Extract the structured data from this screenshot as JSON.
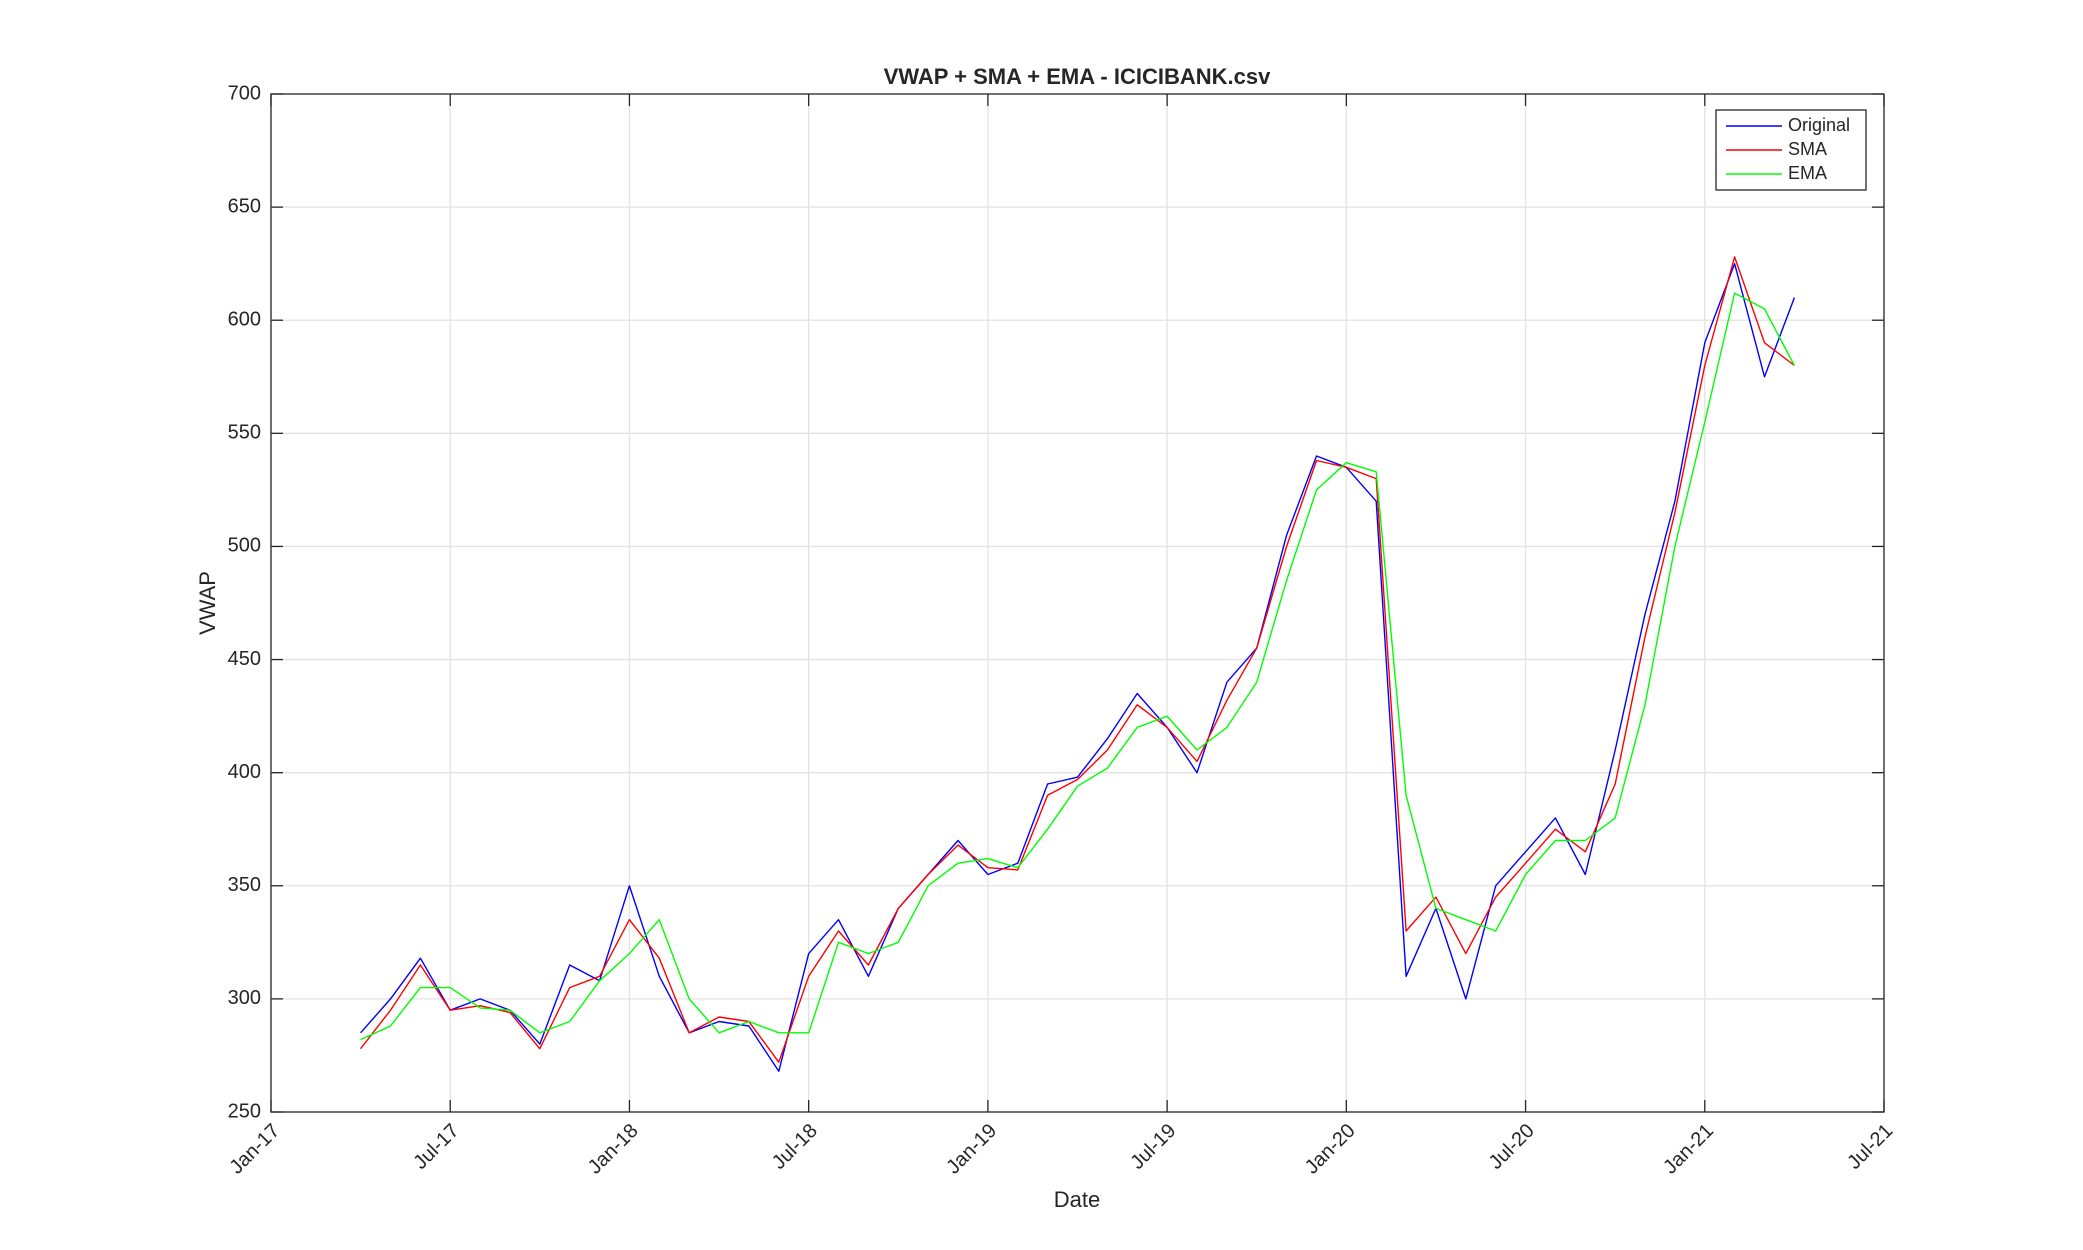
{
  "chart_data": {
    "type": "line",
    "title": "VWAP + SMA + EMA - ICICIBANK.csv",
    "x_label": "Date",
    "y_label": "VWAP",
    "x": [
      "2017-04",
      "2017-05",
      "2017-06",
      "2017-07",
      "2017-08",
      "2017-09",
      "2017-10",
      "2017-11",
      "2017-12",
      "2018-01",
      "2018-02",
      "2018-03",
      "2018-04",
      "2018-05",
      "2018-06",
      "2018-07",
      "2018-08",
      "2018-09",
      "2018-10",
      "2018-11",
      "2018-12",
      "2019-01",
      "2019-02",
      "2019-03",
      "2019-04",
      "2019-05",
      "2019-06",
      "2019-07",
      "2019-08",
      "2019-09",
      "2019-10",
      "2019-11",
      "2019-12",
      "2020-01",
      "2020-02",
      "2020-03",
      "2020-04",
      "2020-05",
      "2020-06",
      "2020-07",
      "2020-08",
      "2020-09",
      "2020-10",
      "2020-11",
      "2020-12",
      "2021-01",
      "2021-02",
      "2021-03",
      "2021-04"
    ],
    "series": [
      {
        "name": "Original",
        "color": "#0000ff",
        "values": [
          285,
          300,
          318,
          295,
          300,
          295,
          280,
          315,
          308,
          350,
          310,
          285,
          290,
          288,
          268,
          320,
          335,
          310,
          340,
          355,
          370,
          355,
          360,
          395,
          398,
          415,
          435,
          420,
          400,
          440,
          455,
          505,
          540,
          535,
          520,
          310,
          340,
          300,
          350,
          365,
          380,
          355,
          410,
          470,
          520,
          590,
          625,
          575,
          610
        ]
      },
      {
        "name": "SMA",
        "color": "#ff0000",
        "values": [
          278,
          295,
          315,
          295,
          297,
          294,
          278,
          305,
          310,
          335,
          318,
          285,
          292,
          290,
          272,
          310,
          330,
          315,
          340,
          355,
          368,
          358,
          357,
          390,
          397,
          410,
          430,
          420,
          405,
          432,
          455,
          500,
          538,
          535,
          530,
          330,
          345,
          320,
          345,
          360,
          375,
          365,
          395,
          460,
          515,
          580,
          628,
          590,
          580
        ]
      },
      {
        "name": "EMA",
        "color": "#00ff00",
        "values": [
          282,
          288,
          305,
          305,
          296,
          295,
          285,
          290,
          308,
          320,
          335,
          300,
          285,
          290,
          285,
          285,
          325,
          320,
          325,
          350,
          360,
          362,
          358,
          375,
          394,
          402,
          420,
          425,
          410,
          420,
          440,
          485,
          525,
          537,
          533,
          390,
          340,
          335,
          330,
          355,
          370,
          370,
          380,
          430,
          500,
          555,
          612,
          605,
          580
        ]
      }
    ],
    "xlim": [
      "2017-01",
      "2021-07"
    ],
    "xticks": [
      {
        "value": "2017-01",
        "label": "Jan-17"
      },
      {
        "value": "2017-07",
        "label": "Jul-17"
      },
      {
        "value": "2018-01",
        "label": "Jan-18"
      },
      {
        "value": "2018-07",
        "label": "Jul-18"
      },
      {
        "value": "2019-01",
        "label": "Jan-19"
      },
      {
        "value": "2019-07",
        "label": "Jul-19"
      },
      {
        "value": "2020-01",
        "label": "Jan-20"
      },
      {
        "value": "2020-07",
        "label": "Jul-20"
      },
      {
        "value": "2021-01",
        "label": "Jan-21"
      },
      {
        "value": "2021-07",
        "label": "Jul-21"
      }
    ],
    "ylim": [
      250,
      700
    ],
    "yticks": [
      250,
      300,
      350,
      400,
      450,
      500,
      550,
      600,
      650,
      700
    ],
    "grid": true,
    "legend": "upper right"
  }
}
